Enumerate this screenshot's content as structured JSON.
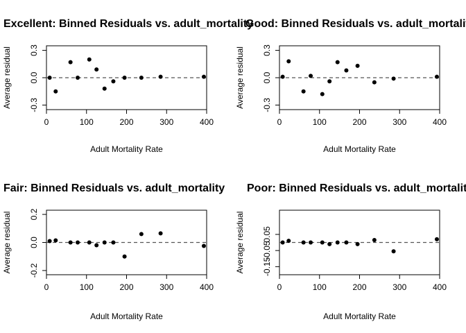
{
  "chart_data": [
    {
      "type": "scatter",
      "title": "Excellent: Binned Residuals vs. adult_mortality",
      "xlabel": "Adult Mortality Rate",
      "ylabel": "Average residual",
      "xlim": [
        0,
        400
      ],
      "ylim": [
        -0.35,
        0.35
      ],
      "xticks": [
        0,
        100,
        200,
        300,
        400
      ],
      "yticks": [
        -0.3,
        0.0,
        0.3
      ],
      "ytick_labels": [
        "-0.3",
        "0.0",
        "0.3"
      ],
      "reference_line": 0,
      "x": [
        8,
        23,
        60,
        78,
        107,
        125,
        145,
        167,
        195,
        237,
        285,
        393
      ],
      "y": [
        0.0,
        -0.15,
        0.17,
        0.0,
        0.2,
        0.09,
        -0.12,
        -0.04,
        0.0,
        0.0,
        0.01,
        0.01
      ]
    },
    {
      "type": "scatter",
      "title": "Good: Binned Residuals vs. adult_mortality",
      "xlabel": "Adult Mortality Rate",
      "ylabel": "Average residual",
      "xlim": [
        0,
        400
      ],
      "ylim": [
        -0.35,
        0.35
      ],
      "xticks": [
        0,
        100,
        200,
        300,
        400
      ],
      "yticks": [
        -0.3,
        0.0,
        0.3
      ],
      "ytick_labels": [
        "-0.3",
        "0.0",
        "0.3"
      ],
      "reference_line": 0,
      "x": [
        8,
        23,
        60,
        78,
        107,
        125,
        145,
        167,
        195,
        237,
        285,
        393
      ],
      "y": [
        0.01,
        0.18,
        -0.15,
        0.02,
        -0.18,
        -0.04,
        0.17,
        0.08,
        0.13,
        -0.05,
        -0.01,
        0.01
      ]
    },
    {
      "type": "scatter",
      "title": "Fair: Binned Residuals vs. adult_mortality",
      "xlabel": "Adult Mortality Rate",
      "ylabel": "Average residual",
      "xlim": [
        0,
        400
      ],
      "ylim": [
        -0.23,
        0.23
      ],
      "xticks": [
        0,
        100,
        200,
        300,
        400
      ],
      "yticks": [
        -0.2,
        0.0,
        0.2
      ],
      "ytick_labels": [
        "-0.2",
        "0.0",
        "0.2"
      ],
      "reference_line": 0,
      "x": [
        8,
        23,
        60,
        78,
        107,
        125,
        145,
        167,
        195,
        237,
        285,
        393
      ],
      "y": [
        0.01,
        0.015,
        0.0,
        0.0,
        0.0,
        -0.02,
        0.0,
        0.0,
        -0.1,
        0.06,
        0.065,
        -0.025
      ]
    },
    {
      "type": "scatter",
      "title": "Poor: Binned Residuals vs. adult_mortality",
      "xlabel": "Adult Mortality Rate",
      "ylabel": "Average residual",
      "xlim": [
        0,
        400
      ],
      "ylim": [
        -0.2,
        0.2
      ],
      "xticks": [
        0,
        100,
        200,
        300,
        400
      ],
      "yticks": [
        -0.15,
        -0.05,
        0.05
      ],
      "ytick_labels": [
        "-0.15",
        "-0.05",
        "0.05"
      ],
      "reference_line": 0,
      "x": [
        8,
        23,
        60,
        78,
        107,
        125,
        145,
        167,
        195,
        237,
        285,
        393
      ],
      "y": [
        0.0,
        0.01,
        0.0,
        0.0,
        0.0,
        -0.01,
        0.0,
        0.0,
        -0.01,
        0.015,
        -0.055,
        0.02
      ]
    }
  ]
}
